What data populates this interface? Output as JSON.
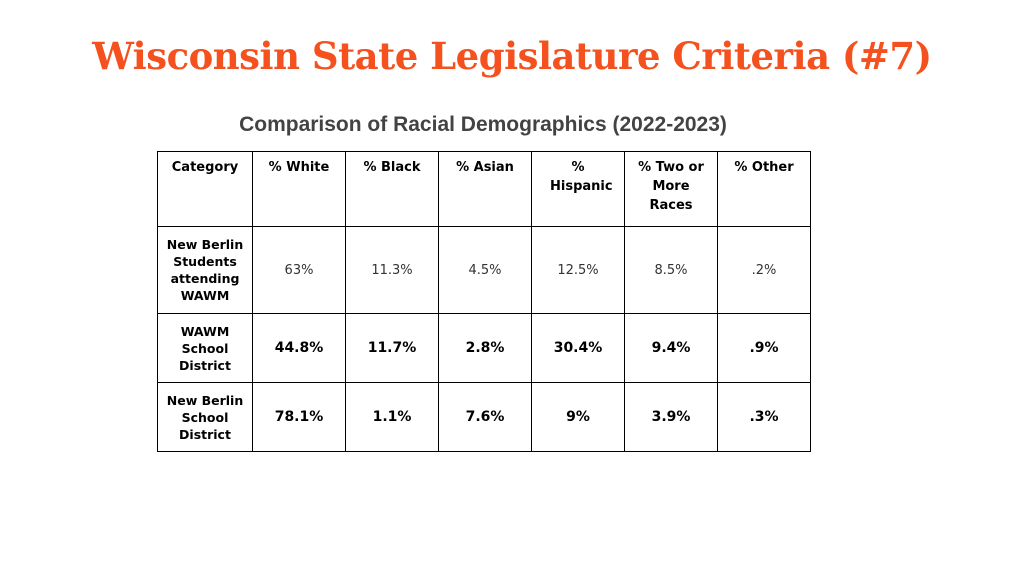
{
  "slide": {
    "title": "Wisconsin State Legislature Criteria (#7)",
    "subtitle": "Comparison of Racial Demographics (2022-2023)",
    "title_color": "#f4511e"
  },
  "table": {
    "headers": [
      "Category",
      "% White",
      "% Black",
      "% Asian",
      "% Hispanic",
      "% Two or More Races",
      "% Other"
    ],
    "rows": [
      {
        "category": "New Berlin Students attending WAWM",
        "values": [
          "63%",
          "11.3%",
          "4.5%",
          "12.5%",
          "8.5%",
          ".2%"
        ]
      },
      {
        "category": "WAWM School District",
        "values": [
          "44.8%",
          "11.7%",
          "2.8%",
          "30.4%",
          "9.4%",
          ".9%"
        ]
      },
      {
        "category": "New Berlin School District",
        "values": [
          "78.1%",
          "1.1%",
          "7.6%",
          "9%",
          "3.9%",
          ".3%"
        ]
      }
    ]
  }
}
